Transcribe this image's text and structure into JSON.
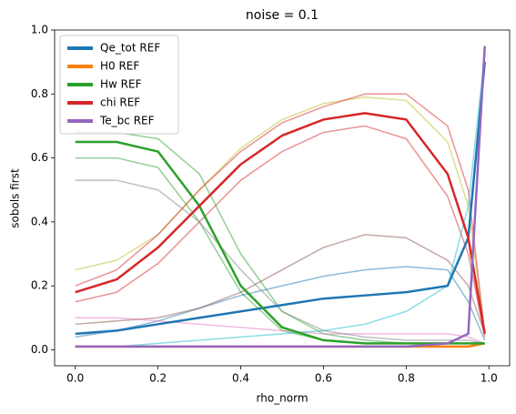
{
  "chart_data": {
    "type": "line",
    "title": "noise = 0.1",
    "x_label": "rho_norm",
    "y_label": "sobols first",
    "x": [
      0.0,
      0.1,
      0.2,
      0.3,
      0.4,
      0.5,
      0.6,
      0.7,
      0.8,
      0.9,
      0.95,
      0.99
    ],
    "xlim": [
      -0.05,
      1.05
    ],
    "ylim": [
      -0.05,
      1.0
    ],
    "xticks": [
      {
        "value": 0,
        "label": "0.0"
      },
      {
        "value": 0.2,
        "label": "0.2"
      },
      {
        "value": 0.4,
        "label": "0.4"
      },
      {
        "value": 0.6,
        "label": "0.6"
      },
      {
        "value": 0.8,
        "label": "0.8"
      },
      {
        "value": 1,
        "label": "1.0"
      }
    ],
    "yticks": [
      {
        "value": 0,
        "label": "0.0"
      },
      {
        "value": 0.2,
        "label": "0.2"
      },
      {
        "value": 0.4,
        "label": "0.4"
      },
      {
        "value": 0.6,
        "label": "0.6"
      },
      {
        "value": 0.8,
        "label": "0.8"
      },
      {
        "value": 1,
        "label": "1.0"
      }
    ],
    "legend": "upper left",
    "ensemble_opacity": 0.5,
    "ensemble": [
      {
        "color": "#2ca02c",
        "values": [
          0.68,
          0.68,
          0.66,
          0.55,
          0.3,
          0.12,
          0.05,
          0.03,
          0.02,
          0.02,
          0.02,
          0.02
        ]
      },
      {
        "color": "#2ca02c",
        "values": [
          0.6,
          0.6,
          0.57,
          0.4,
          0.18,
          0.06,
          0.03,
          0.02,
          0.02,
          0.02,
          0.02,
          0.02
        ]
      },
      {
        "color": "#bcbd22",
        "values": [
          0.25,
          0.28,
          0.36,
          0.5,
          0.63,
          0.72,
          0.77,
          0.79,
          0.78,
          0.65,
          0.45,
          0.05
        ]
      },
      {
        "color": "#d62728",
        "values": [
          0.15,
          0.18,
          0.27,
          0.4,
          0.53,
          0.62,
          0.68,
          0.7,
          0.66,
          0.48,
          0.3,
          0.04
        ]
      },
      {
        "color": "#d62728",
        "values": [
          0.2,
          0.25,
          0.36,
          0.5,
          0.62,
          0.71,
          0.76,
          0.8,
          0.8,
          0.7,
          0.5,
          0.05
        ]
      },
      {
        "color": "#1f77b4",
        "values": [
          0.04,
          0.06,
          0.09,
          0.13,
          0.17,
          0.2,
          0.23,
          0.25,
          0.26,
          0.25,
          0.15,
          0.03
        ]
      },
      {
        "color": "#8c564b",
        "values": [
          0.08,
          0.09,
          0.1,
          0.13,
          0.18,
          0.25,
          0.32,
          0.36,
          0.35,
          0.28,
          0.2,
          0.05
        ]
      },
      {
        "color": "#e377c2",
        "values": [
          0.1,
          0.1,
          0.09,
          0.08,
          0.07,
          0.06,
          0.05,
          0.05,
          0.05,
          0.05,
          0.04,
          0.02
        ]
      },
      {
        "color": "#17becf",
        "values": [
          0.01,
          0.01,
          0.02,
          0.03,
          0.04,
          0.05,
          0.06,
          0.08,
          0.12,
          0.2,
          0.45,
          0.93
        ]
      },
      {
        "color": "#7f7f7f",
        "values": [
          0.53,
          0.53,
          0.5,
          0.4,
          0.25,
          0.12,
          0.06,
          0.04,
          0.03,
          0.03,
          0.03,
          0.02
        ]
      }
    ],
    "series": [
      {
        "name": "Qe_tot REF",
        "color": "#1f77b4",
        "values": [
          0.05,
          0.06,
          0.08,
          0.1,
          0.12,
          0.14,
          0.16,
          0.17,
          0.18,
          0.2,
          0.35,
          0.9
        ]
      },
      {
        "name": "H0 REF",
        "color": "#ff7f0e",
        "values": [
          0.01,
          0.01,
          0.01,
          0.01,
          0.01,
          0.01,
          0.01,
          0.01,
          0.01,
          0.01,
          0.01,
          0.02
        ]
      },
      {
        "name": "Hw REF",
        "color": "#2ca02c",
        "values": [
          0.65,
          0.65,
          0.62,
          0.45,
          0.2,
          0.07,
          0.03,
          0.02,
          0.02,
          0.02,
          0.02,
          0.02
        ]
      },
      {
        "name": "chi REF",
        "color": "#d62728",
        "values": [
          0.18,
          0.22,
          0.32,
          0.45,
          0.58,
          0.67,
          0.72,
          0.74,
          0.72,
          0.55,
          0.35,
          0.05
        ]
      },
      {
        "name": "Te_bc REF",
        "color": "#9467bd",
        "values": [
          0.01,
          0.01,
          0.01,
          0.01,
          0.01,
          0.01,
          0.01,
          0.01,
          0.01,
          0.02,
          0.05,
          0.95
        ]
      }
    ]
  }
}
